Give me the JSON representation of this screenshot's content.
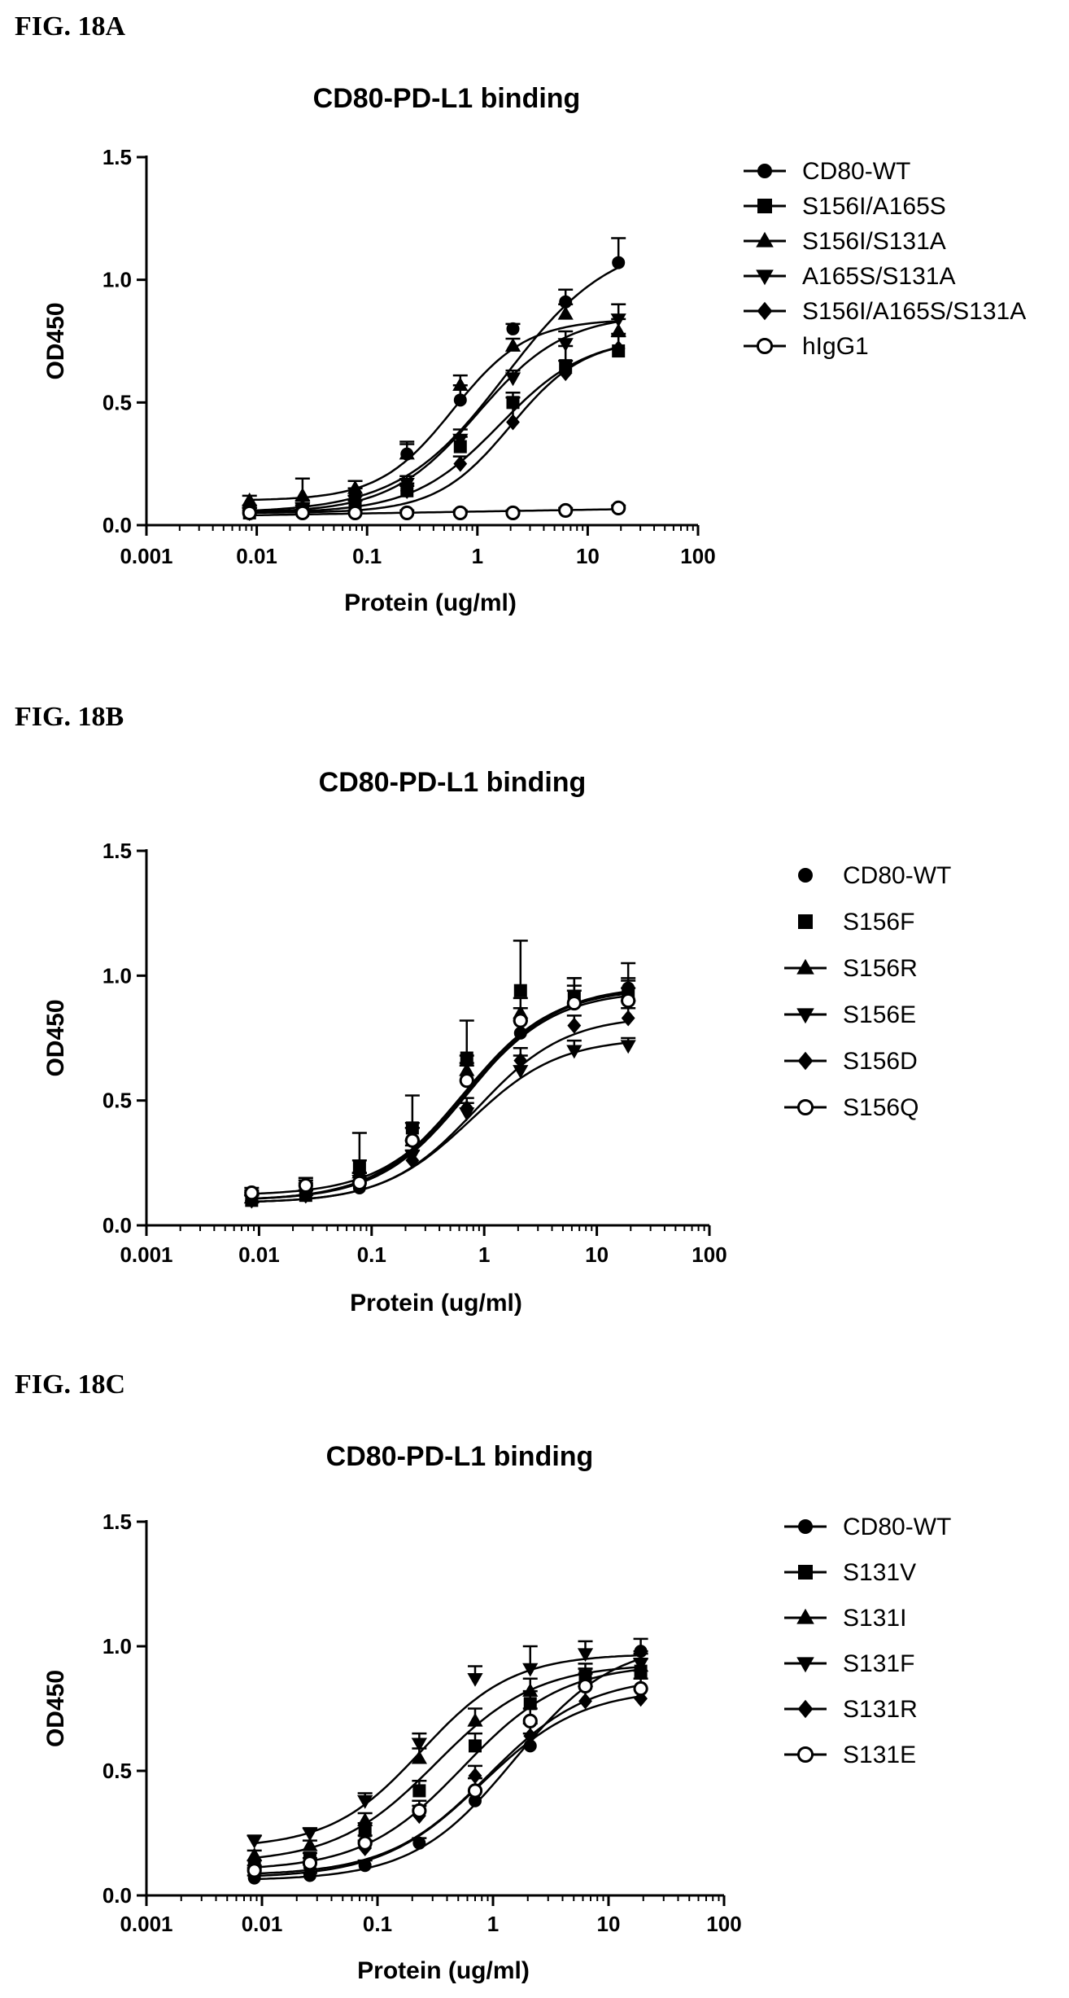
{
  "figures": [
    {
      "label": "FIG. 18A"
    },
    {
      "label": "FIG. 18B"
    },
    {
      "label": "FIG. 18C"
    }
  ],
  "chart_data": [
    {
      "type": "scatter",
      "title": "CD80-PD-L1 binding",
      "xlabel": "Protein (ug/ml)",
      "ylabel": "OD450",
      "x_scale": "log",
      "xlim": [
        0.001,
        100
      ],
      "ylim": [
        0,
        1.5
      ],
      "x_ticks": [
        0.001,
        0.01,
        0.1,
        1,
        10,
        100
      ],
      "x_tick_labels": [
        "0.001",
        "0.01",
        "0.1",
        "1",
        "10",
        "100"
      ],
      "y_ticks": [
        0,
        0.5,
        1.0,
        1.5
      ],
      "y_tick_labels": [
        "0.0",
        "0.5",
        "1.0",
        "1.5"
      ],
      "legend_position": "right",
      "legend_lines": true,
      "fitted_curves": true,
      "x": [
        0.0086,
        0.026,
        0.078,
        0.23,
        0.7,
        2.1,
        6.3,
        19
      ],
      "series": [
        {
          "name": "CD80-WT",
          "marker": "circle",
          "y": [
            0.06,
            0.07,
            0.12,
            0.29,
            0.51,
            0.8,
            0.91,
            1.07
          ],
          "err": [
            0.02,
            0.03,
            0.03,
            0.05,
            0.06,
            0.02,
            0.05,
            0.1
          ],
          "fit": {
            "bottom": 0.05,
            "top": 1.17,
            "ec50": 1.8,
            "hill": 0.9
          }
        },
        {
          "name": "S156I/A165S",
          "marker": "square",
          "y": [
            0.05,
            0.06,
            0.08,
            0.14,
            0.32,
            0.5,
            0.65,
            0.71
          ],
          "err": [
            0.02,
            0.02,
            0.02,
            0.03,
            0.04,
            0.04,
            0.08,
            0.06
          ],
          "fit": {
            "bottom": 0.05,
            "top": 0.77,
            "ec50": 1.6,
            "hill": 1.1
          }
        },
        {
          "name": "S156I/S131A",
          "marker": "triangle-up",
          "y": [
            0.1,
            0.12,
            0.15,
            0.29,
            0.57,
            0.73,
            0.86,
            0.79
          ],
          "err": [
            0.02,
            0.07,
            0.03,
            0.04,
            0.04,
            0.03,
            0.04,
            0.05
          ],
          "fit": {
            "bottom": 0.1,
            "top": 0.84,
            "ec50": 0.6,
            "hill": 1.3
          }
        },
        {
          "name": "A165S/S131A",
          "marker": "triangle-down",
          "y": [
            0.05,
            0.07,
            0.1,
            0.17,
            0.35,
            0.6,
            0.74,
            0.84
          ],
          "err": [
            0.02,
            0.02,
            0.02,
            0.03,
            0.04,
            0.03,
            0.05,
            0.06
          ],
          "fit": {
            "bottom": 0.05,
            "top": 0.86,
            "ec50": 1.0,
            "hill": 1.1
          }
        },
        {
          "name": "S156I/A165S/S131A",
          "marker": "diamond",
          "y": [
            0.05,
            0.06,
            0.08,
            0.14,
            0.25,
            0.42,
            0.62,
            0.72
          ],
          "err": [
            0.02,
            0.02,
            0.02,
            0.02,
            0.03,
            0.1,
            0.05,
            0.06
          ],
          "fit": {
            "bottom": 0.05,
            "top": 0.76,
            "ec50": 2.0,
            "hill": 1.3
          }
        },
        {
          "name": "hIgG1",
          "marker": "circle-open",
          "y": [
            0.05,
            0.05,
            0.05,
            0.05,
            0.05,
            0.05,
            0.06,
            0.07
          ],
          "err": [
            0.01,
            0.01,
            0.01,
            0.01,
            0.01,
            0.01,
            0.01,
            0.01
          ],
          "fit": {
            "linear": [
              0.04,
              0.065
            ]
          }
        }
      ]
    },
    {
      "type": "scatter",
      "title": "CD80-PD-L1 binding",
      "xlabel": "Protein (ug/ml)",
      "ylabel": "OD450",
      "x_scale": "log",
      "xlim": [
        0.001,
        100
      ],
      "ylim": [
        0,
        1.5
      ],
      "x_ticks": [
        0.001,
        0.01,
        0.1,
        1,
        10,
        100
      ],
      "x_tick_labels": [
        "0.001",
        "0.01",
        "0.1",
        "1",
        "10",
        "100"
      ],
      "y_ticks": [
        0,
        0.5,
        1.0,
        1.5
      ],
      "y_tick_labels": [
        "0.0",
        "0.5",
        "1.0",
        "1.5"
      ],
      "legend_position": "right",
      "legend_lines": false,
      "legend_line_markers": [
        "triangle-up",
        "triangle-down",
        "diamond",
        "circle-open"
      ],
      "fitted_curves": true,
      "x": [
        0.0086,
        0.026,
        0.078,
        0.23,
        0.7,
        2.1,
        6.3,
        19
      ],
      "series": [
        {
          "name": "CD80-WT",
          "marker": "circle",
          "y": [
            0.12,
            0.15,
            0.15,
            0.34,
            0.59,
            0.77,
            0.9,
            0.95
          ],
          "err": [
            0.02,
            0.03,
            0.06,
            0.05,
            0.06,
            0.05,
            0.09,
            0.1
          ],
          "fit": {
            "bottom": 0.1,
            "top": 0.96,
            "ec50": 0.72,
            "hill": 1.1
          }
        },
        {
          "name": "S156F",
          "marker": "square",
          "y": [
            0.1,
            0.12,
            0.23,
            0.39,
            0.67,
            0.94,
            0.91,
            0.93
          ],
          "err": [
            0.02,
            0.02,
            0.14,
            0.13,
            0.15,
            0.2,
            0.08,
            0.06
          ],
          "fit": {
            "bottom": 0.1,
            "top": 0.95,
            "ec50": 0.65,
            "hill": 1.1
          }
        },
        {
          "name": "S156R",
          "marker": "triangle-up",
          "y": [
            0.11,
            0.14,
            0.21,
            0.36,
            0.62,
            0.85,
            0.9,
            0.92
          ],
          "err": [
            0.02,
            0.03,
            0.05,
            0.05,
            0.06,
            0.06,
            0.06,
            0.06
          ],
          "fit": {
            "bottom": 0.1,
            "top": 0.95,
            "ec50": 0.68,
            "hill": 1.1
          }
        },
        {
          "name": "S156E",
          "marker": "triangle-down",
          "y": [
            0.1,
            0.12,
            0.18,
            0.28,
            0.45,
            0.62,
            0.7,
            0.72
          ],
          "err": [
            0.02,
            0.02,
            0.03,
            0.04,
            0.04,
            0.06,
            0.04,
            0.03
          ],
          "fit": {
            "bottom": 0.09,
            "top": 0.75,
            "ec50": 0.75,
            "hill": 1.1
          }
        },
        {
          "name": "S156D",
          "marker": "diamond",
          "y": [
            0.1,
            0.12,
            0.18,
            0.26,
            0.47,
            0.66,
            0.8,
            0.83
          ],
          "err": [
            0.02,
            0.02,
            0.03,
            0.04,
            0.04,
            0.05,
            0.04,
            0.04
          ],
          "fit": {
            "bottom": 0.09,
            "top": 0.84,
            "ec50": 0.85,
            "hill": 1.1
          }
        },
        {
          "name": "S156Q",
          "marker": "circle-open",
          "y": [
            0.13,
            0.16,
            0.17,
            0.34,
            0.58,
            0.82,
            0.89,
            0.9
          ],
          "err": [
            0.02,
            0.03,
            0.04,
            0.05,
            0.06,
            0.05,
            0.05,
            0.05
          ],
          "fit": {
            "bottom": 0.12,
            "top": 0.94,
            "ec50": 0.7,
            "hill": 1.1
          }
        }
      ]
    },
    {
      "type": "scatter",
      "title": "CD80-PD-L1 binding",
      "xlabel": "Protein (ug/ml)",
      "ylabel": "OD450",
      "x_scale": "log",
      "xlim": [
        0.001,
        100
      ],
      "ylim": [
        0,
        1.5
      ],
      "x_ticks": [
        0.001,
        0.01,
        0.1,
        1,
        10,
        100
      ],
      "x_tick_labels": [
        "0.001",
        "0.01",
        "0.1",
        "1",
        "10",
        "100"
      ],
      "y_ticks": [
        0,
        0.5,
        1.0,
        1.5
      ],
      "y_tick_labels": [
        "0.0",
        "0.5",
        "1.0",
        "1.5"
      ],
      "legend_position": "right",
      "legend_lines": true,
      "fitted_curves": true,
      "x": [
        0.0086,
        0.026,
        0.078,
        0.23,
        0.7,
        2.1,
        6.3,
        19
      ],
      "series": [
        {
          "name": "CD80-WT",
          "marker": "circle",
          "y": [
            0.07,
            0.08,
            0.12,
            0.21,
            0.38,
            0.6,
            0.85,
            0.98
          ],
          "err": [
            0.01,
            0.01,
            0.02,
            0.02,
            0.04,
            0.05,
            0.06,
            0.05
          ],
          "fit": {
            "bottom": 0.06,
            "top": 1.02,
            "ec50": 1.5,
            "hill": 1.0
          }
        },
        {
          "name": "S131V",
          "marker": "square",
          "y": [
            0.12,
            0.15,
            0.26,
            0.42,
            0.6,
            0.77,
            0.88,
            0.9
          ],
          "err": [
            0.02,
            0.02,
            0.03,
            0.04,
            0.05,
            0.05,
            0.05,
            0.05
          ],
          "fit": {
            "bottom": 0.1,
            "top": 0.93,
            "ec50": 0.55,
            "hill": 1.0
          }
        },
        {
          "name": "S131I",
          "marker": "triangle-up",
          "y": [
            0.16,
            0.2,
            0.3,
            0.55,
            0.7,
            0.82,
            0.86,
            0.92
          ],
          "err": [
            0.02,
            0.02,
            0.03,
            0.04,
            0.05,
            0.05,
            0.05,
            0.05
          ],
          "fit": {
            "bottom": 0.13,
            "top": 0.93,
            "ec50": 0.32,
            "hill": 1.0
          }
        },
        {
          "name": "S131F",
          "marker": "triangle-down",
          "y": [
            0.22,
            0.25,
            0.38,
            0.61,
            0.87,
            0.91,
            0.97,
            0.93
          ],
          "err": [
            0.02,
            0.02,
            0.03,
            0.04,
            0.05,
            0.09,
            0.05,
            0.05
          ],
          "fit": {
            "bottom": 0.19,
            "top": 0.97,
            "ec50": 0.24,
            "hill": 1.1
          }
        },
        {
          "name": "S131R",
          "marker": "diamond",
          "y": [
            0.09,
            0.11,
            0.19,
            0.32,
            0.48,
            0.64,
            0.78,
            0.79
          ],
          "err": [
            0.02,
            0.02,
            0.03,
            0.04,
            0.04,
            0.05,
            0.06,
            0.04
          ],
          "fit": {
            "bottom": 0.07,
            "top": 0.83,
            "ec50": 0.8,
            "hill": 1.0
          }
        },
        {
          "name": "S131E",
          "marker": "circle-open",
          "y": [
            0.1,
            0.13,
            0.21,
            0.34,
            0.42,
            0.7,
            0.84,
            0.83
          ],
          "err": [
            0.02,
            0.02,
            0.03,
            0.04,
            0.05,
            0.05,
            0.05,
            0.04
          ],
          "fit": {
            "bottom": 0.08,
            "top": 0.88,
            "ec50": 0.9,
            "hill": 1.0
          }
        }
      ]
    }
  ]
}
